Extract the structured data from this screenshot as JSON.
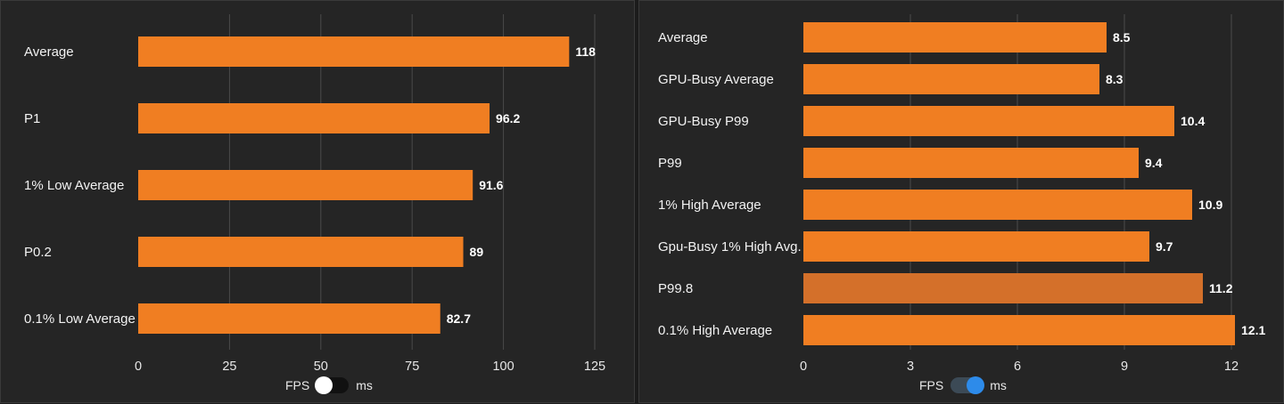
{
  "colors": {
    "bar": "#f07e22",
    "bar_highlight": "#d4702a",
    "background": "#252525",
    "grid": "#4a4a4a",
    "toggle_on": "#2d8bea"
  },
  "chart_data": [
    {
      "type": "bar",
      "orientation": "horizontal",
      "categories": [
        "Average",
        "P1",
        "1% Low Average",
        "P0.2",
        "0.1% Low Average"
      ],
      "values": [
        118,
        96.2,
        91.6,
        89,
        82.7
      ],
      "value_labels": [
        "118",
        "96.2",
        "91.6",
        "89",
        "82.7"
      ],
      "xlim": [
        0,
        125
      ],
      "xticks": [
        0,
        25,
        50,
        75,
        100,
        125
      ],
      "grid": true,
      "xlabel": "",
      "ylabel": ""
    },
    {
      "type": "bar",
      "orientation": "horizontal",
      "categories": [
        "Average",
        "GPU-Busy Average",
        "GPU-Busy P99",
        "P99",
        "1% High Average",
        "Gpu-Busy 1% High Avg.",
        "P99.8",
        "0.1% High Average"
      ],
      "values": [
        8.5,
        8.3,
        10.4,
        9.4,
        10.9,
        9.7,
        11.2,
        12.1
      ],
      "value_labels": [
        "8.5",
        "8.3",
        "10.4",
        "9.4",
        "10.9",
        "9.7",
        "11.2",
        "12.1"
      ],
      "highlighted_index": 6,
      "xlim": [
        0,
        12.5
      ],
      "xticks": [
        0,
        3,
        6,
        9,
        12
      ],
      "grid": true,
      "xlabel": "",
      "ylabel": ""
    }
  ],
  "toggles": {
    "left": {
      "label_left": "FPS",
      "label_right": "ms",
      "selected": "FPS"
    },
    "right": {
      "label_left": "FPS",
      "label_right": "ms",
      "selected": "ms"
    }
  }
}
